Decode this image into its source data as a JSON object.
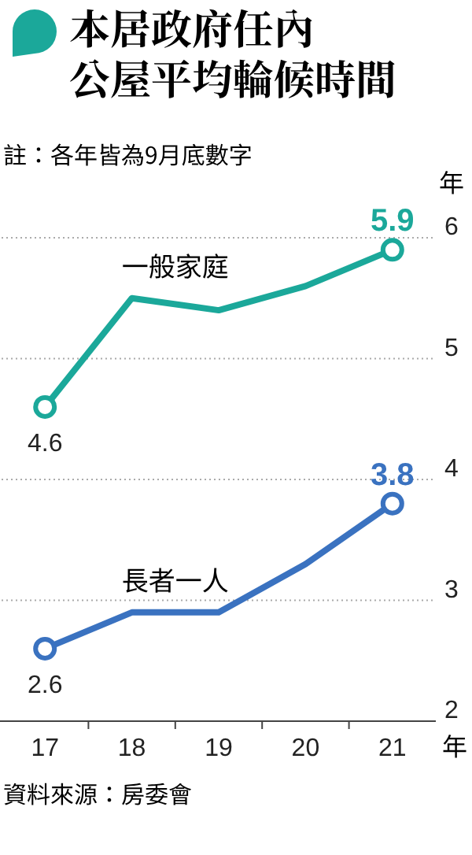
{
  "chart_data": {
    "type": "line",
    "title": "本居政府任內公屋平均輪候時間",
    "subtitle": "註：各年皆為9月底數字",
    "xlabel": "年",
    "ylabel": "年",
    "categories": [
      "17",
      "18",
      "19",
      "20",
      "21"
    ],
    "series": [
      {
        "name": "一般家庭",
        "color": "#1ba89a",
        "values": [
          4.6,
          5.5,
          5.4,
          5.6,
          5.9
        ],
        "value_labels": [
          "4.6",
          null,
          null,
          null,
          "5.9"
        ]
      },
      {
        "name": "長者一人",
        "color": "#3a72c0",
        "values": [
          2.6,
          2.9,
          2.9,
          3.3,
          3.8
        ],
        "value_labels": [
          "2.6",
          null,
          null,
          null,
          "3.8"
        ]
      }
    ],
    "ylim": [
      2,
      6
    ],
    "yticks": [
      2,
      3,
      4,
      5,
      6
    ],
    "grid": "y",
    "line_style": "solid",
    "annotations": [
      "資料來源：房委會"
    ]
  }
}
